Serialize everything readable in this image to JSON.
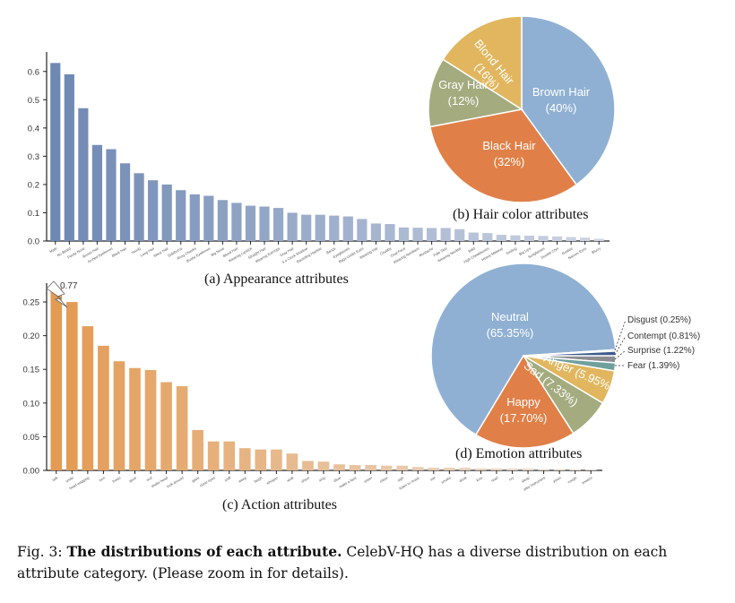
{
  "figure": {
    "caption_label": "Fig. 3:",
    "caption_bold": "The distributions of each attribute.",
    "caption_text": "CelebV-HQ has a diverse distribution on each attribute category. (Please zoom in for details)."
  },
  "colors": {
    "appearance_bar_start": "#6f88b3",
    "appearance_bar_end": "#cdd5e3",
    "action_bar_start": "#e39a52",
    "action_bar_end": "#ece3dc",
    "pie_blue": "#8fb0d3",
    "pie_orange": "#e08048",
    "pie_green": "#a3ab7f",
    "pie_gold": "#e1b65e",
    "pie_teal": "#6fa09c",
    "pie_gray": "#8d8d91",
    "pie_navy": "#3f5b8e",
    "pie_light": "#dfe6f2"
  },
  "chart_data": [
    {
      "id": "appearance",
      "type": "bar",
      "title": "(a) Appearance attributes",
      "xlabel": "",
      "ylabel": "",
      "ylim": [
        0,
        0.65
      ],
      "yticks": [
        "0.0",
        "0.1",
        "0.2",
        "0.3",
        "0.4",
        "0.5",
        "0.6"
      ],
      "grid": false,
      "categories": [
        "Male",
        "No Beard",
        "Pointy Nose",
        "Brown Hair",
        "Arched Eyebrows",
        "Black Hair",
        "Young",
        "Long Hair",
        "Wavy Hair",
        "Sideburns",
        "Rosy Cheeks",
        "Bushy Eyebrows",
        "Big Nose",
        "Blond Hair",
        "Wearing Lipstick",
        "Straight Hair",
        "Wearing Earrings",
        "Gray Hair",
        "5 o Clock Shadow",
        "Receding Hairline",
        "Bangs",
        "Eyeglasses",
        "Bags Under Eyes",
        "Wearing Hat",
        "Chubby",
        "Oval Face",
        "Wearing Necklace",
        "Mustache",
        "Pale Skin",
        "Wearing Necktie",
        "Bald",
        "High Cheekbones",
        "Heavy Makeup",
        "Smiling",
        "Big Lips",
        "Sunglasses",
        "Double Chin",
        "Goatee",
        "Narrow Eyes",
        "Blurry"
      ],
      "values": [
        0.63,
        0.59,
        0.47,
        0.34,
        0.325,
        0.275,
        0.24,
        0.215,
        0.2,
        0.18,
        0.165,
        0.16,
        0.145,
        0.135,
        0.125,
        0.122,
        0.117,
        0.1,
        0.093,
        0.093,
        0.09,
        0.087,
        0.078,
        0.062,
        0.06,
        0.048,
        0.047,
        0.046,
        0.046,
        0.042,
        0.03,
        0.028,
        0.022,
        0.02,
        0.019,
        0.018,
        0.016,
        0.014,
        0.012,
        0.008
      ]
    },
    {
      "id": "hair_color",
      "type": "pie",
      "title": "(b) Hair color attributes",
      "labels": [
        "Brown Hair",
        "Black Hair",
        "Gray Hair",
        "Blond Hair"
      ],
      "values": [
        40,
        32,
        12,
        16
      ],
      "display": [
        "(40%)",
        "(32%)",
        "(12%)",
        "(16%)"
      ]
    },
    {
      "id": "action",
      "type": "bar",
      "title": "(c) Action attributes",
      "xlabel": "",
      "ylabel": "",
      "ylim": [
        0,
        0.27
      ],
      "yticks": [
        "0.00",
        "0.05",
        "0.10",
        "0.15",
        "0.20",
        "0.25"
      ],
      "grid": false,
      "annotation": {
        "category": "talk",
        "label": "0.77",
        "note": "axis break"
      },
      "categories": [
        "talk",
        "smile",
        "head wagging",
        "turn",
        "frown",
        "gaze",
        "nod",
        "shake head",
        "look around",
        "glare",
        "close eyes",
        "sniff",
        "weep",
        "laugh",
        "whisper",
        "wink",
        "shout",
        "sing",
        "blow",
        "make a face",
        "sneer",
        "cheer",
        "sigh",
        "listen to music",
        "eat",
        "smoke",
        "drink",
        "kiss",
        "read",
        "cry",
        "sleep",
        "play instrument",
        "yawn",
        "cough",
        "sneeze"
      ],
      "values": [
        0.77,
        0.25,
        0.214,
        0.185,
        0.162,
        0.152,
        0.149,
        0.131,
        0.125,
        0.06,
        0.043,
        0.043,
        0.033,
        0.031,
        0.031,
        0.025,
        0.014,
        0.013,
        0.009,
        0.008,
        0.008,
        0.007,
        0.007,
        0.005,
        0.004,
        0.004,
        0.004,
        0.003,
        0.003,
        0.003,
        0.003,
        0.002,
        0.002,
        0.002,
        0.001
      ]
    },
    {
      "id": "emotion",
      "type": "pie",
      "title": "(d) Emotion attributes",
      "labels": [
        "Neutral",
        "Happy",
        "Sad",
        "Anger",
        "Fear",
        "Surprise",
        "Contempt",
        "Disgust"
      ],
      "values": [
        65.35,
        17.7,
        7.33,
        5.95,
        1.39,
        1.22,
        0.81,
        0.25
      ],
      "display": [
        "(65.35%)",
        "(17.70%)",
        "(7.33%)",
        "(5.95%)",
        "(1.39%)",
        "(1.22%)",
        "(0.81%)",
        "(0.25%)"
      ]
    }
  ]
}
